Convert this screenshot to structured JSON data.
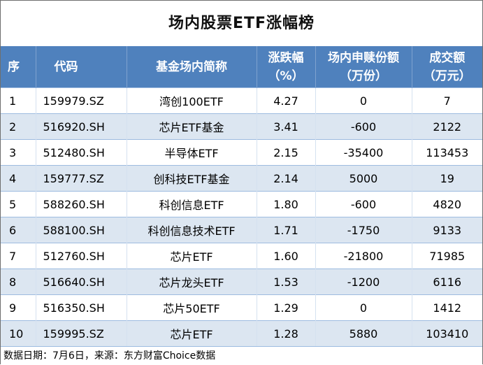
{
  "title": "场内股票ETF涨幅榜",
  "headers": {
    "rank": "序",
    "code": "代码",
    "name": "基金场内简称",
    "change_line1": "涨跌幅",
    "change_line2": "（%）",
    "shares_line1": "场内申赎份额",
    "shares_line2": "（万份）",
    "volume_line1": "成交额",
    "volume_line2": "（万元）"
  },
  "rows": [
    {
      "rank": "1",
      "code": "159979.SZ",
      "name": "湾创100ETF",
      "change": "4.27",
      "shares": "0",
      "volume": "7"
    },
    {
      "rank": "2",
      "code": "516920.SH",
      "name": "芯片ETF基金",
      "change": "3.41",
      "shares": "-600",
      "volume": "2122"
    },
    {
      "rank": "3",
      "code": "512480.SH",
      "name": "半导体ETF",
      "change": "2.15",
      "shares": "-35400",
      "volume": "113453"
    },
    {
      "rank": "4",
      "code": "159777.SZ",
      "name": "创科技ETF基金",
      "change": "2.14",
      "shares": "5000",
      "volume": "19"
    },
    {
      "rank": "5",
      "code": "588260.SH",
      "name": "科创信息ETF",
      "change": "1.80",
      "shares": "-600",
      "volume": "4820"
    },
    {
      "rank": "6",
      "code": "588100.SH",
      "name": "科创信息技术ETF",
      "change": "1.71",
      "shares": "-1750",
      "volume": "9133"
    },
    {
      "rank": "7",
      "code": "512760.SH",
      "name": "芯片ETF",
      "change": "1.60",
      "shares": "-21800",
      "volume": "71985"
    },
    {
      "rank": "8",
      "code": "516640.SH",
      "name": "芯片龙头ETF",
      "change": "1.53",
      "shares": "-1200",
      "volume": "6116"
    },
    {
      "rank": "9",
      "code": "516350.SH",
      "name": "芯片50ETF",
      "change": "1.29",
      "shares": "0",
      "volume": "1412"
    },
    {
      "rank": "10",
      "code": "159995.SZ",
      "name": "芯片ETF",
      "change": "1.28",
      "shares": "5880",
      "volume": "103410"
    }
  ],
  "footer": "数据日期：7月6日，来源：东方财富Choice数据",
  "colors": {
    "header_bg": "#4f81bd",
    "header_text": "#ffffff",
    "stripe_bg": "#dce6f1"
  }
}
